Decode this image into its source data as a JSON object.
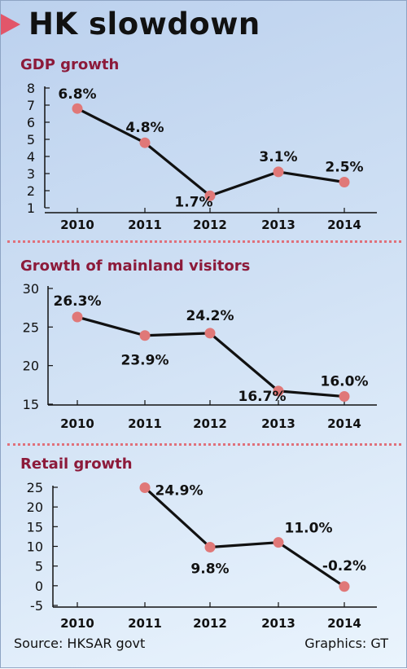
{
  "title": "HK slowdown",
  "footer": {
    "source": "Source: HKSAR govt",
    "credit": "Graphics: GT"
  },
  "colors": {
    "marker": "#e07878",
    "line": "#111111",
    "panel_title": "#8c1a3a",
    "divider": "#e0707a",
    "accent": "#e2566a"
  },
  "chart_data": [
    {
      "type": "line",
      "title": "GDP growth",
      "x": [
        "2010",
        "2011",
        "2012",
        "2013",
        "2014"
      ],
      "values": [
        6.8,
        4.8,
        1.7,
        3.1,
        2.5
      ],
      "labels": [
        "6.8%",
        "4.8%",
        "1.7%",
        "3.1%",
        "2.5%"
      ],
      "yticks": [
        1,
        2,
        3,
        4,
        5,
        6,
        7,
        8
      ],
      "ylim": [
        1,
        8
      ],
      "grid": false
    },
    {
      "type": "line",
      "title": "Growth of mainland visitors",
      "x": [
        "2010",
        "2011",
        "2012",
        "2013",
        "2014"
      ],
      "values": [
        26.3,
        23.9,
        24.2,
        16.7,
        16.0
      ],
      "labels": [
        "26.3%",
        "23.9%",
        "24.2%",
        "16.7%",
        "16.0%"
      ],
      "yticks": [
        15,
        20,
        25,
        30
      ],
      "ylim": [
        15,
        30
      ],
      "grid": false
    },
    {
      "type": "line",
      "title": "Retail growth",
      "x": [
        "2010",
        "2011",
        "2012",
        "2013",
        "2014"
      ],
      "values": [
        null,
        24.9,
        9.8,
        11.0,
        -0.2
      ],
      "labels": [
        "",
        "24.9%",
        "9.8%",
        "11.0%",
        "-0.2%"
      ],
      "yticks": [
        -5,
        0,
        5,
        10,
        15,
        20,
        25
      ],
      "ylim": [
        -5,
        25
      ],
      "grid": false
    }
  ]
}
